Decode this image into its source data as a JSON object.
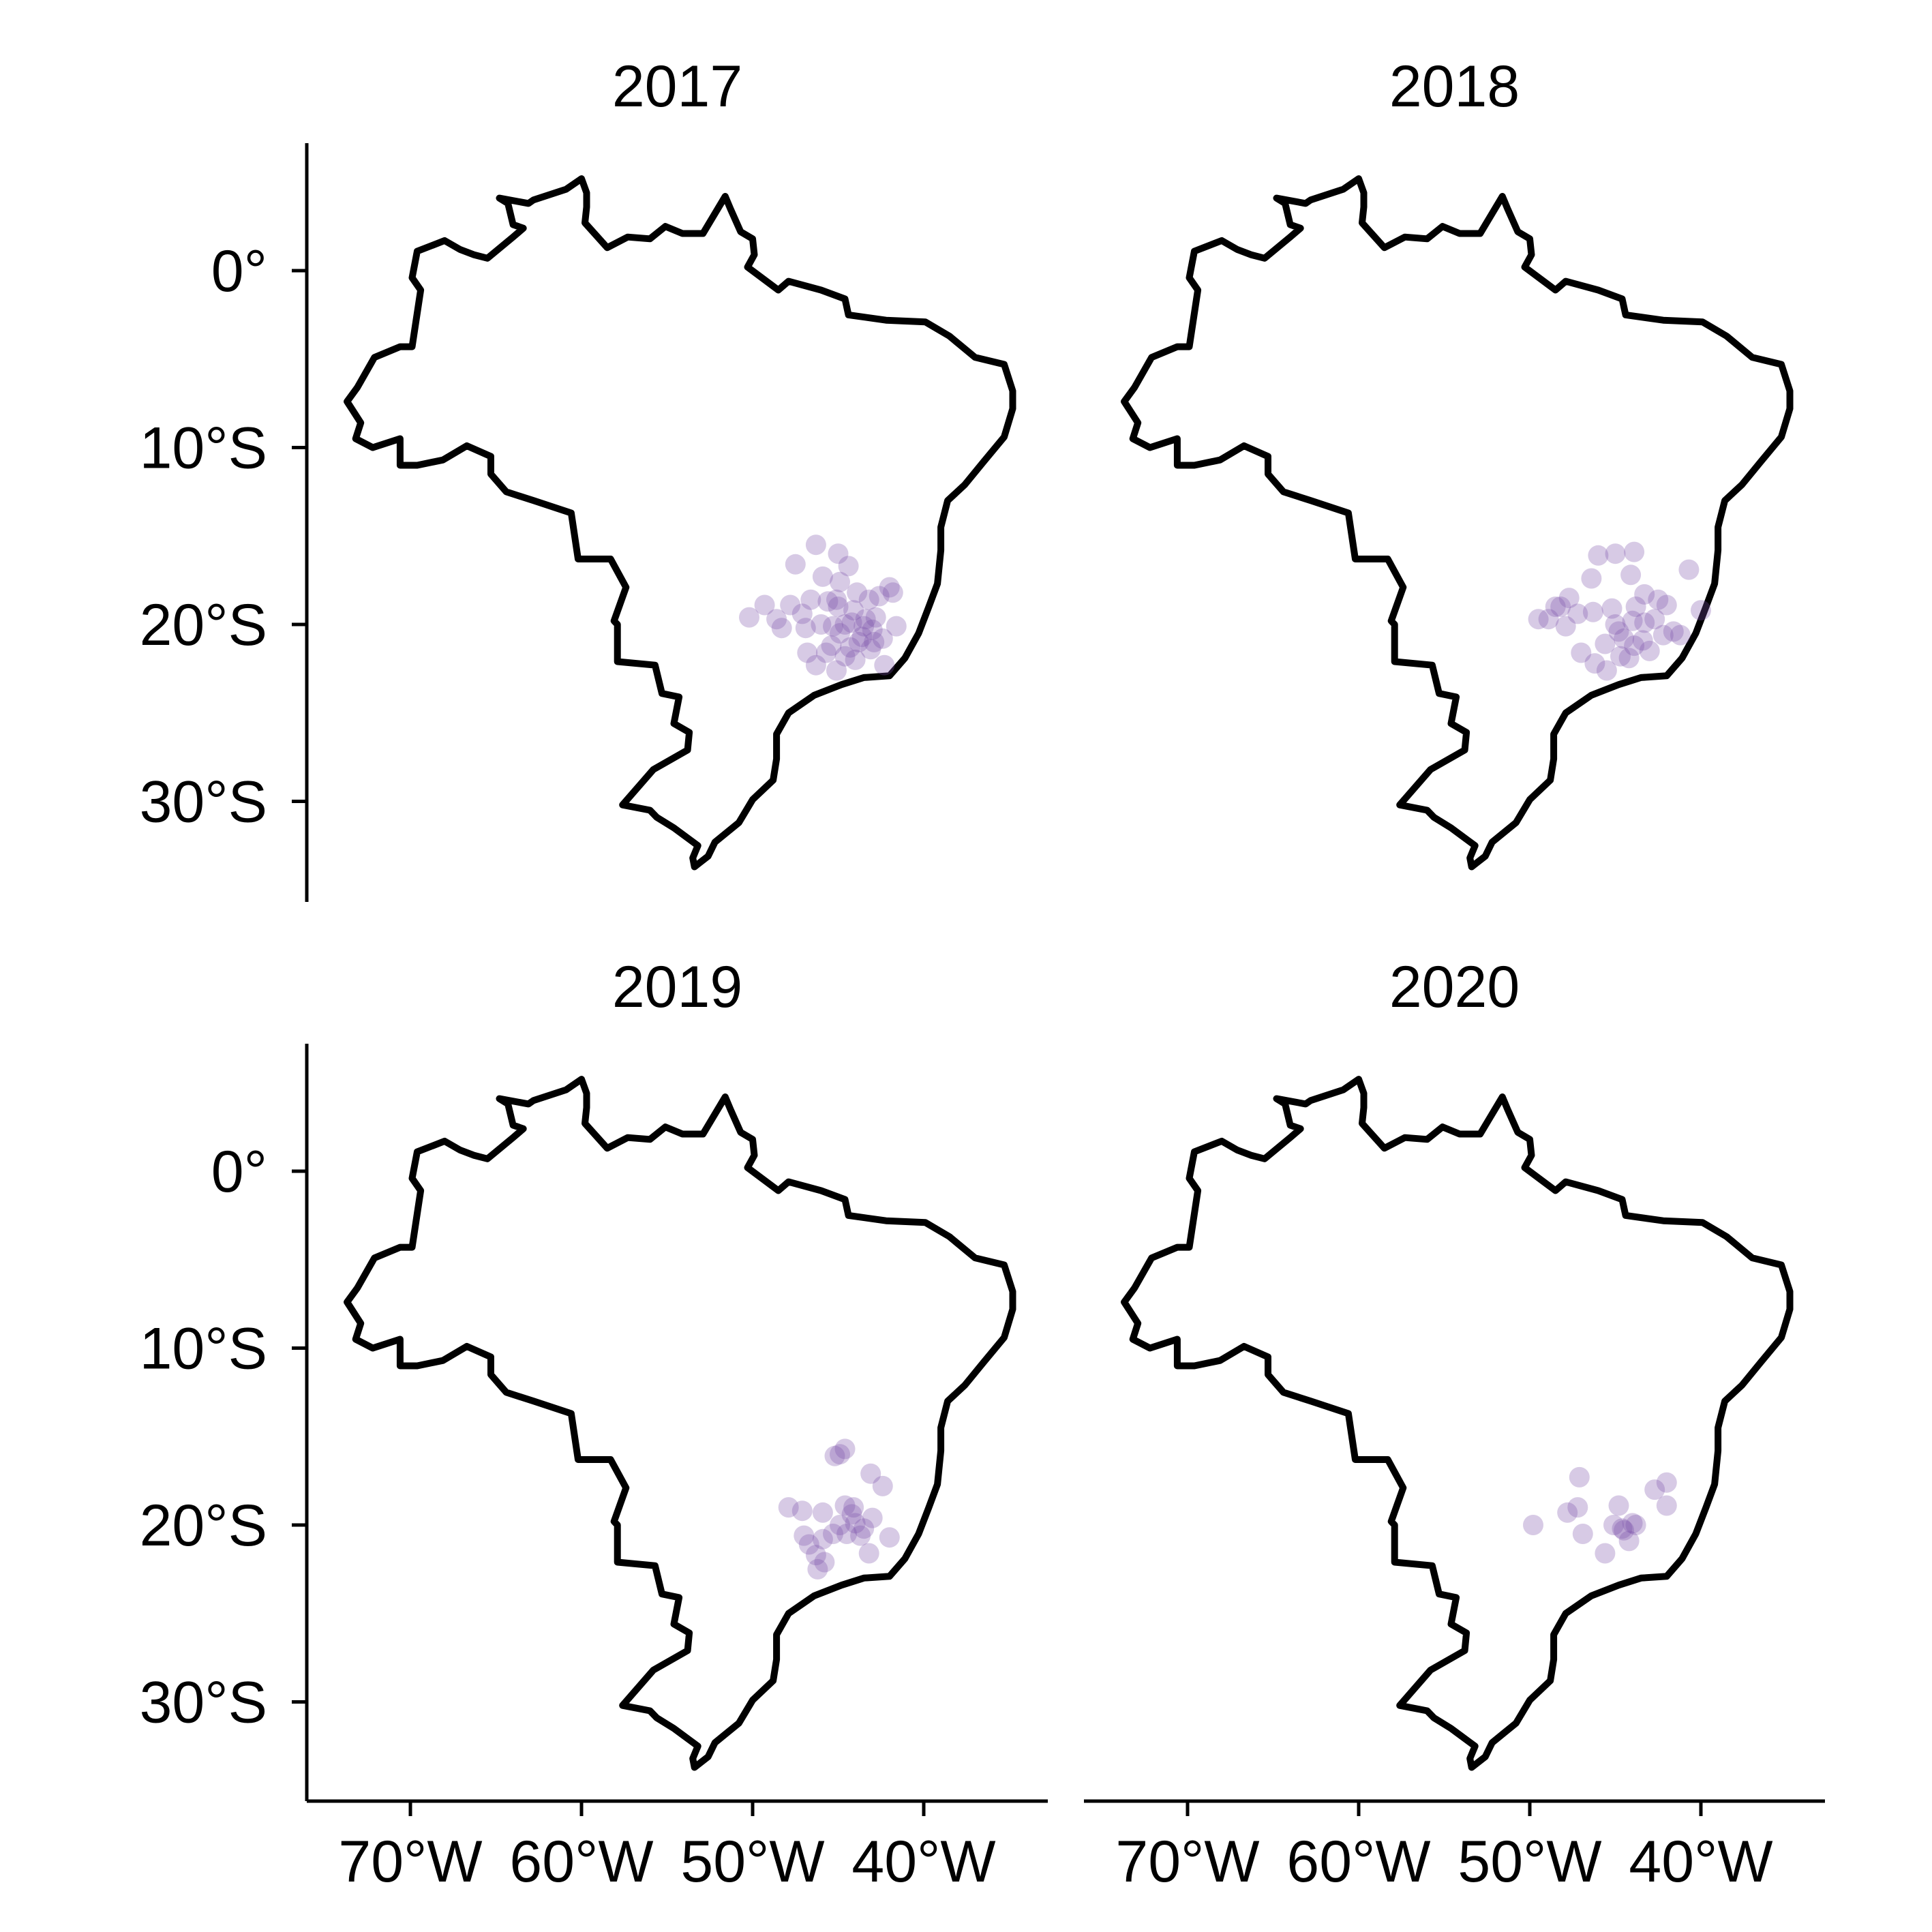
{
  "figure": {
    "type": "faceted-map",
    "region": "Brazil",
    "point_color": "#7B4FA8",
    "outline_color": "#000000",
    "point_opacity": 0.3
  },
  "axes": {
    "y_ticks": [
      {
        "value": 0,
        "label": "0°"
      },
      {
        "value": -10,
        "label": "10°S"
      },
      {
        "value": -20,
        "label": "20°S"
      },
      {
        "value": -30,
        "label": "30°S"
      }
    ],
    "x_ticks": [
      {
        "value": -70,
        "label": "70°W"
      },
      {
        "value": -60,
        "label": "60°W"
      },
      {
        "value": -50,
        "label": "50°W"
      },
      {
        "value": -40,
        "label": "40°W"
      }
    ],
    "xlim": [
      -76,
      -33
    ],
    "ylim": [
      -35.5,
      7.3
    ]
  },
  "outline": [
    [
      -51.6,
      4.2
    ],
    [
      -51.3,
      3.5
    ],
    [
      -50.7,
      2.2
    ],
    [
      -50.0,
      1.8
    ],
    [
      -49.9,
      0.9
    ],
    [
      -50.3,
      0.2
    ],
    [
      -48.5,
      -1.1
    ],
    [
      -47.9,
      -0.6
    ],
    [
      -46.0,
      -1.1
    ],
    [
      -44.6,
      -1.6
    ],
    [
      -44.4,
      -2.5
    ],
    [
      -42.2,
      -2.8
    ],
    [
      -39.9,
      -2.9
    ],
    [
      -38.5,
      -3.7
    ],
    [
      -37.0,
      -4.9
    ],
    [
      -35.3,
      -5.3
    ],
    [
      -34.8,
      -6.8
    ],
    [
      -34.8,
      -7.8
    ],
    [
      -35.3,
      -9.4
    ],
    [
      -36.5,
      -10.8
    ],
    [
      -37.6,
      -12.1
    ],
    [
      -38.6,
      -13.0
    ],
    [
      -39.0,
      -14.5
    ],
    [
      -39.0,
      -15.8
    ],
    [
      -39.2,
      -17.7
    ],
    [
      -39.7,
      -19.0
    ],
    [
      -40.3,
      -20.5
    ],
    [
      -41.1,
      -21.9
    ],
    [
      -42.0,
      -22.9
    ],
    [
      -43.5,
      -23.0
    ],
    [
      -44.8,
      -23.4
    ],
    [
      -46.4,
      -24.0
    ],
    [
      -47.9,
      -25.0
    ],
    [
      -48.6,
      -26.2
    ],
    [
      -48.6,
      -27.6
    ],
    [
      -48.8,
      -28.8
    ],
    [
      -50.0,
      -29.9
    ],
    [
      -50.8,
      -31.2
    ],
    [
      -52.2,
      -32.3
    ],
    [
      -52.6,
      -33.1
    ],
    [
      -53.4,
      -33.7
    ],
    [
      -53.5,
      -33.2
    ],
    [
      -53.2,
      -32.5
    ],
    [
      -54.6,
      -31.5
    ],
    [
      -55.6,
      -30.9
    ],
    [
      -56.0,
      -30.5
    ],
    [
      -57.6,
      -30.2
    ],
    [
      -55.8,
      -28.2
    ],
    [
      -53.8,
      -27.1
    ],
    [
      -53.7,
      -26.1
    ],
    [
      -54.6,
      -25.6
    ],
    [
      -54.3,
      -24.1
    ],
    [
      -55.3,
      -23.9
    ],
    [
      -55.7,
      -22.3
    ],
    [
      -57.9,
      -22.1
    ],
    [
      -57.9,
      -20.0
    ],
    [
      -58.1,
      -19.8
    ],
    [
      -57.4,
      -17.9
    ],
    [
      -58.3,
      -16.3
    ],
    [
      -60.2,
      -16.3
    ],
    [
      -60.6,
      -13.7
    ],
    [
      -62.8,
      -13.0
    ],
    [
      -64.4,
      -12.5
    ],
    [
      -65.3,
      -11.5
    ],
    [
      -65.3,
      -10.5
    ],
    [
      -66.7,
      -9.9
    ],
    [
      -68.1,
      -10.7
    ],
    [
      -69.6,
      -11.0
    ],
    [
      -70.6,
      -11.0
    ],
    [
      -70.6,
      -9.5
    ],
    [
      -72.2,
      -10.0
    ],
    [
      -73.2,
      -9.5
    ],
    [
      -72.9,
      -8.6
    ],
    [
      -73.7,
      -7.4
    ],
    [
      -73.1,
      -6.6
    ],
    [
      -72.1,
      -4.9
    ],
    [
      -70.6,
      -4.3
    ],
    [
      -69.9,
      -4.3
    ],
    [
      -69.4,
      -1.1
    ],
    [
      -69.9,
      -0.4
    ],
    [
      -69.6,
      1.1
    ],
    [
      -68.0,
      1.7
    ],
    [
      -67.1,
      1.2
    ],
    [
      -66.3,
      0.9
    ],
    [
      -65.5,
      0.7
    ],
    [
      -64.0,
      1.9
    ],
    [
      -63.4,
      2.4
    ],
    [
      -64.0,
      2.6
    ],
    [
      -64.3,
      3.8
    ],
    [
      -64.8,
      4.1
    ],
    [
      -63.1,
      3.8
    ],
    [
      -62.8,
      4.0
    ],
    [
      -60.9,
      4.6
    ],
    [
      -60.0,
      5.2
    ],
    [
      -59.7,
      4.4
    ],
    [
      -59.7,
      3.6
    ],
    [
      -59.8,
      2.7
    ],
    [
      -58.5,
      1.3
    ],
    [
      -57.3,
      1.9
    ],
    [
      -56.0,
      1.8
    ],
    [
      -55.1,
      2.5
    ],
    [
      -54.1,
      2.1
    ],
    [
      -52.9,
      2.1
    ],
    [
      -51.6,
      4.2
    ]
  ],
  "panels": [
    {
      "title": "2017",
      "points": [
        [
          -44.9,
          -20.5
        ],
        [
          -44.2,
          -19.9
        ],
        [
          -43.6,
          -20.7
        ],
        [
          -45.4,
          -21.2
        ],
        [
          -43.1,
          -21.4
        ],
        [
          -44.0,
          -22.0
        ],
        [
          -42.8,
          -19.6
        ],
        [
          -45.0,
          -19.0
        ],
        [
          -43.2,
          -18.6
        ],
        [
          -46.0,
          -20.0
        ],
        [
          -46.8,
          -21.6
        ],
        [
          -42.4,
          -20.8
        ],
        [
          -44.6,
          -21.8
        ],
        [
          -45.6,
          -18.7
        ],
        [
          -43.9,
          -18.2
        ],
        [
          -42.6,
          -18.4
        ],
        [
          -47.8,
          -18.9
        ],
        [
          -48.6,
          -19.7
        ],
        [
          -49.3,
          -18.9
        ],
        [
          -47.1,
          -19.4
        ],
        [
          -46.3,
          -22.3
        ],
        [
          -45.0,
          -16.0
        ],
        [
          -44.4,
          -16.7
        ],
        [
          -46.3,
          -15.5
        ],
        [
          -45.9,
          -17.3
        ],
        [
          -44.9,
          -17.6
        ],
        [
          -43.5,
          -20.1
        ],
        [
          -42.9,
          -21.0
        ],
        [
          -44.3,
          -21.3
        ],
        [
          -45.3,
          -20.1
        ],
        [
          -46.6,
          -18.6
        ],
        [
          -45.1,
          -22.6
        ],
        [
          -42.0,
          -17.9
        ],
        [
          -41.8,
          -18.2
        ],
        [
          -42.3,
          -22.3
        ],
        [
          -48.3,
          -20.2
        ],
        [
          -50.2,
          -19.6
        ],
        [
          -47.5,
          -16.6
        ],
        [
          -43.0,
          -20.3
        ],
        [
          -44.1,
          -19.2
        ],
        [
          -45.7,
          -21.6
        ],
        [
          -44.6,
          -20.0
        ],
        [
          -43.4,
          -19.7
        ],
        [
          -43.8,
          -21.0
        ],
        [
          -45.1,
          -18.6
        ],
        [
          -41.6,
          -20.1
        ],
        [
          -46.9,
          -20.2
        ]
      ]
    },
    {
      "title": "2018",
      "points": [
        [
          -44.8,
          -20.4
        ],
        [
          -44.0,
          -19.8
        ],
        [
          -43.4,
          -20.9
        ],
        [
          -45.6,
          -21.1
        ],
        [
          -43.0,
          -21.5
        ],
        [
          -44.2,
          -21.9
        ],
        [
          -42.7,
          -19.7
        ],
        [
          -45.2,
          -19.1
        ],
        [
          -43.3,
          -18.3
        ],
        [
          -46.3,
          -19.3
        ],
        [
          -47.0,
          -21.6
        ],
        [
          -42.2,
          -20.6
        ],
        [
          -44.7,
          -21.8
        ],
        [
          -46.0,
          -16.1
        ],
        [
          -45.0,
          -16.0
        ],
        [
          -43.9,
          -15.9
        ],
        [
          -46.4,
          -17.4
        ],
        [
          -44.1,
          -17.2
        ],
        [
          -42.0,
          -18.9
        ],
        [
          -40.7,
          -16.9
        ],
        [
          -40.0,
          -19.2
        ],
        [
          -48.5,
          -19.0
        ],
        [
          -49.5,
          -19.7
        ],
        [
          -48.9,
          -19.7
        ],
        [
          -47.2,
          -19.4
        ],
        [
          -47.9,
          -20.1
        ],
        [
          -45.5,
          -22.6
        ],
        [
          -46.2,
          -22.2
        ],
        [
          -43.8,
          -19.0
        ],
        [
          -43.3,
          -19.9
        ],
        [
          -41.6,
          -20.4
        ],
        [
          -42.5,
          -18.6
        ],
        [
          -44.5,
          -20.8
        ],
        [
          -47.7,
          -18.5
        ],
        [
          -41.2,
          -20.6
        ],
        [
          -48.2,
          -19.0
        ],
        [
          -45.0,
          -20.0
        ],
        [
          -43.9,
          -21.2
        ]
      ]
    },
    {
      "title": "2019",
      "points": [
        [
          -44.9,
          -20.0
        ],
        [
          -44.0,
          -19.9
        ],
        [
          -43.5,
          -20.2
        ],
        [
          -45.3,
          -20.5
        ],
        [
          -43.2,
          -21.6
        ],
        [
          -44.1,
          -19.0
        ],
        [
          -45.9,
          -19.3
        ],
        [
          -45.2,
          -16.1
        ],
        [
          -44.9,
          -16.0
        ],
        [
          -44.6,
          -15.7
        ],
        [
          -43.1,
          -17.1
        ],
        [
          -42.4,
          -17.8
        ],
        [
          -42.0,
          -20.7
        ],
        [
          -47.9,
          -19.0
        ],
        [
          -46.7,
          -21.1
        ],
        [
          -46.3,
          -21.7
        ],
        [
          -45.8,
          -22.1
        ],
        [
          -47.0,
          -20.6
        ],
        [
          -47.1,
          -19.2
        ],
        [
          -43.7,
          -20.6
        ],
        [
          -44.5,
          -20.5
        ],
        [
          -44.2,
          -19.4
        ],
        [
          -43.0,
          -19.6
        ],
        [
          -46.2,
          -22.5
        ],
        [
          -45.9,
          -20.8
        ],
        [
          -44.6,
          -18.9
        ]
      ]
    },
    {
      "title": "2020",
      "points": [
        [
          -47.1,
          -17.3
        ],
        [
          -47.2,
          -19.0
        ],
        [
          -47.8,
          -19.3
        ],
        [
          -49.8,
          -20.0
        ],
        [
          -46.9,
          -20.5
        ],
        [
          -45.1,
          -20.0
        ],
        [
          -44.5,
          -20.3
        ],
        [
          -44.0,
          -19.9
        ],
        [
          -44.2,
          -20.9
        ],
        [
          -44.6,
          -20.2
        ],
        [
          -44.8,
          -18.9
        ],
        [
          -45.6,
          -21.6
        ],
        [
          -42.0,
          -17.6
        ],
        [
          -42.0,
          -18.9
        ],
        [
          -42.7,
          -18.0
        ],
        [
          -43.8,
          -20.0
        ]
      ]
    }
  ]
}
